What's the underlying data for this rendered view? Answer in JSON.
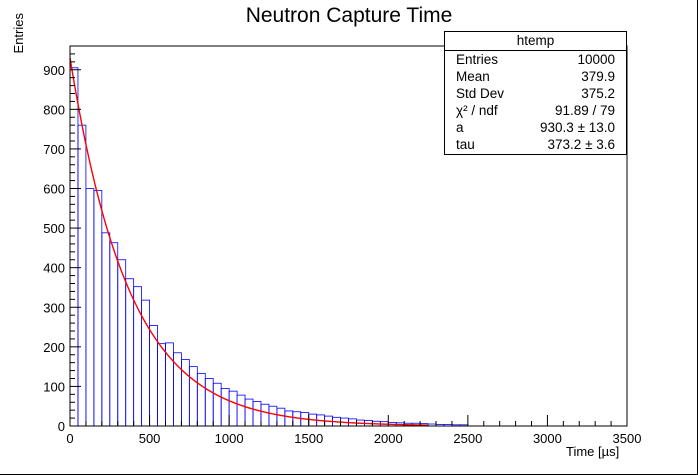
{
  "chart_data": {
    "type": "bar",
    "title": "Neutron Capture Time",
    "xlabel": "Time [µs]",
    "ylabel": "Entries",
    "xlim": [
      0,
      3500
    ],
    "ylim": [
      0,
      960
    ],
    "xticks": [
      0,
      500,
      1000,
      1500,
      2000,
      2500,
      3000,
      3500
    ],
    "yticks": [
      0,
      100,
      200,
      300,
      400,
      500,
      600,
      700,
      800,
      900
    ],
    "bin_width": 50,
    "bin_edges_start": 0,
    "values": [
      905,
      760,
      600,
      595,
      488,
      463,
      420,
      372,
      352,
      318,
      254,
      208,
      210,
      185,
      168,
      150,
      133,
      120,
      108,
      95,
      88,
      78,
      68,
      62,
      55,
      50,
      45,
      38,
      36,
      34,
      30,
      28,
      25,
      22,
      20,
      18,
      15,
      14,
      12,
      11,
      9,
      8,
      7,
      7,
      6,
      5,
      4,
      4,
      3,
      3
    ],
    "fit": {
      "function": "a*exp(-t/tau)",
      "a": 930.3,
      "tau": 373.2,
      "color": "#ff0000"
    },
    "histogram_color": "#0000ff",
    "legend_position": "top-right"
  },
  "stats": {
    "name": "htemp",
    "rows": [
      {
        "label": "Entries",
        "value": "10000"
      },
      {
        "label": "Mean",
        "value": "379.9"
      },
      {
        "label": "Std Dev",
        "value": "375.2"
      },
      {
        "label": "χ² / ndf",
        "value": "91.89 / 79"
      },
      {
        "label": "a",
        "value": "930.3 ± 13.0"
      },
      {
        "label": "tau",
        "value": "373.2 ± 3.6"
      }
    ]
  }
}
